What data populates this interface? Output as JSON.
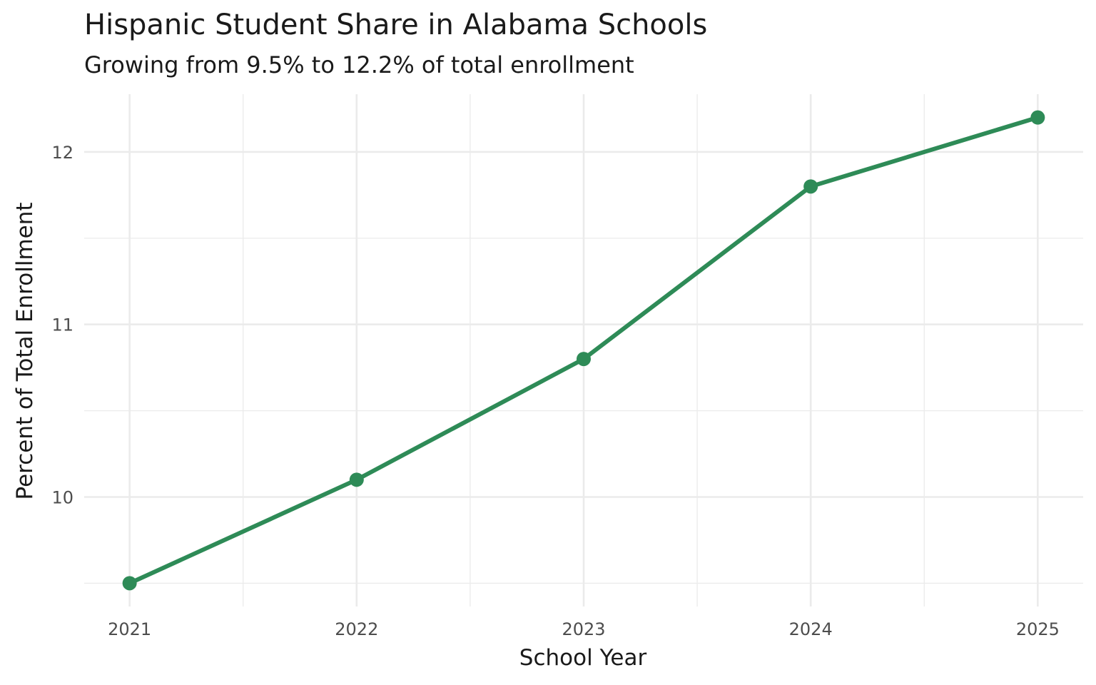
{
  "chart_data": {
    "type": "line",
    "title": "Hispanic Student Share in Alabama Schools",
    "subtitle": "Growing from 9.5% to 12.2% of total enrollment",
    "xlabel": "School Year",
    "ylabel": "Percent of Total Enrollment",
    "x": [
      2021,
      2022,
      2023,
      2024,
      2025
    ],
    "x_tick_labels": [
      "2021",
      "2022",
      "2023",
      "2024",
      "2025"
    ],
    "y_ticks": [
      10,
      11,
      12
    ],
    "y_tick_labels": [
      "10",
      "11",
      "12"
    ],
    "series": [
      {
        "values": [
          9.5,
          10.1,
          10.8,
          11.8,
          12.2
        ],
        "color": "#2e8b57"
      }
    ],
    "xlim": [
      2020.8,
      2025.2
    ],
    "ylim": [
      9.365,
      12.335
    ],
    "grid": true,
    "legend": "none"
  }
}
